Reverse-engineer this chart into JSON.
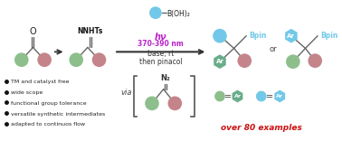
{
  "bg_color": "#ffffff",
  "green_color": "#8dbf8d",
  "pink_color": "#c4848a",
  "blue_color": "#72c8e8",
  "teal_hex_color": "#6aad8a",
  "blue_hex_color": "#72c8e8",
  "arrow_color": "#404040",
  "red_color": "#cc1111",
  "bullet_color": "#111111",
  "bullet_text_color": "#222222",
  "hv_color": "#bb22cc",
  "reaction_color": "#333333",
  "bond_color": "#666666",
  "bullet_points": [
    "TM and catalyst free",
    "wide scope",
    "functional group tolerance",
    "versatile synthetic intermediates",
    "adapted to continuos flow"
  ],
  "over80": "over 80 examples",
  "via_text": "via",
  "N2_text": "N₂",
  "Bpin_text": "Bpin",
  "BOH2_text": "B(OH)₂",
  "Ar_text": "Ar",
  "or_text": "or",
  "NNHTs_text": "NNHTs",
  "O_text": "O",
  "hv_text": "hν",
  "hv_nm": "370-390 nm",
  "base_rt": "base, rt",
  "then_pinacol": "then pinacol"
}
